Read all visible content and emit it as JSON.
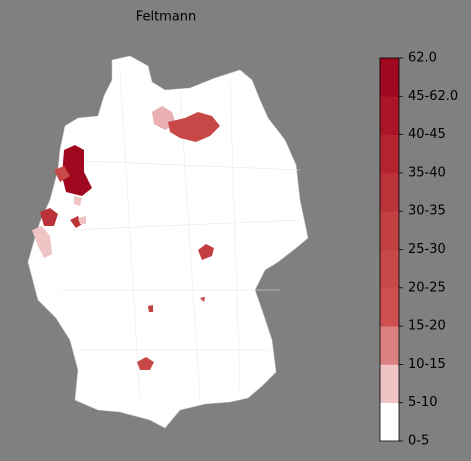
{
  "title": "Feltmann",
  "colorbar": {
    "labels": [
      "0-5",
      "5-10",
      "10-15",
      "15-20",
      "20-25",
      "25-30",
      "30-35",
      "35-40",
      "40-45",
      "45-62.0",
      "62.0"
    ],
    "colors": [
      "#ffffff",
      "#f0c4c4",
      "#db8080",
      "#cd4f4f",
      "#c84848",
      "#c23f42",
      "#bb3238",
      "#b3242f",
      "#aa1628",
      "#a00820"
    ]
  }
}
